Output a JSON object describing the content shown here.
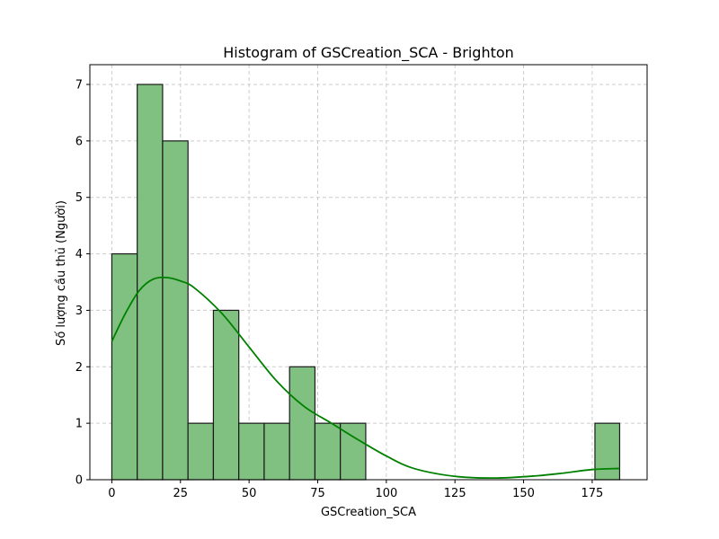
{
  "chart_data": {
    "type": "bar",
    "title": "Histogram of GSCreation_SCA - Brighton",
    "xlabel": "GSCreation_SCA",
    "ylabel": "Số lượng cầu thủ (Người)",
    "xlim": [
      -8,
      195
    ],
    "ylim": [
      0,
      7.35
    ],
    "xticks": [
      0,
      25,
      50,
      75,
      100,
      125,
      150,
      175
    ],
    "yticks": [
      0,
      1,
      2,
      3,
      4,
      5,
      6,
      7
    ],
    "grid": true,
    "bins": [
      {
        "x0": 0.0,
        "x1": 9.25,
        "count": 4
      },
      {
        "x0": 9.25,
        "x1": 18.5,
        "count": 7
      },
      {
        "x0": 18.5,
        "x1": 27.75,
        "count": 6
      },
      {
        "x0": 27.75,
        "x1": 37.0,
        "count": 1
      },
      {
        "x0": 37.0,
        "x1": 46.25,
        "count": 3
      },
      {
        "x0": 46.25,
        "x1": 55.5,
        "count": 1
      },
      {
        "x0": 55.5,
        "x1": 64.75,
        "count": 1
      },
      {
        "x0": 64.75,
        "x1": 74.0,
        "count": 2
      },
      {
        "x0": 74.0,
        "x1": 83.25,
        "count": 1
      },
      {
        "x0": 83.25,
        "x1": 92.5,
        "count": 1
      },
      {
        "x0": 176.0,
        "x1": 185.0,
        "count": 1
      }
    ],
    "kde": {
      "x": [
        0,
        5,
        10,
        15,
        20,
        25,
        30,
        40,
        50,
        60,
        70,
        80,
        90,
        100,
        110,
        125,
        140,
        155,
        165,
        175,
        185
      ],
      "y": [
        2.45,
        2.95,
        3.35,
        3.55,
        3.58,
        3.52,
        3.4,
        2.95,
        2.35,
        1.75,
        1.3,
        1.0,
        0.7,
        0.42,
        0.2,
        0.06,
        0.03,
        0.07,
        0.12,
        0.18,
        0.2
      ]
    },
    "colors": {
      "bar_fill": "#80c080",
      "bar_edge": "#1a1a1a",
      "kde_line": "#008000",
      "grid": "#cccccc"
    }
  }
}
